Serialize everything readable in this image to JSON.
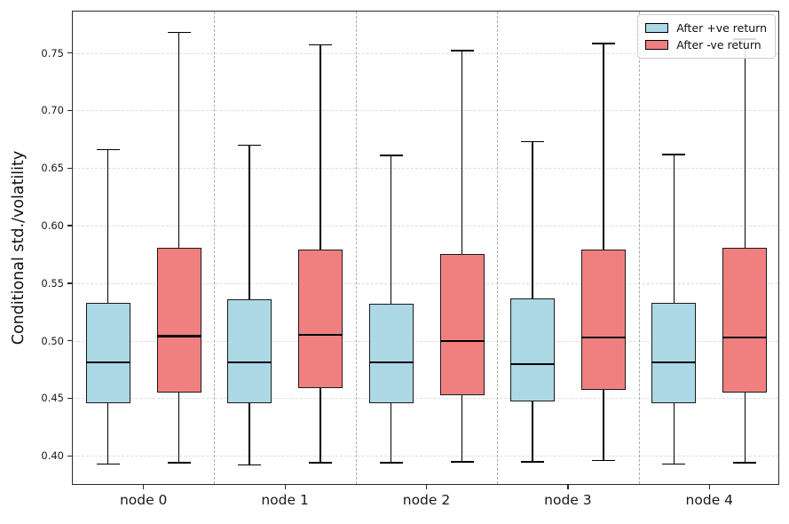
{
  "figure": {
    "background": "#ffffff",
    "plot_border_color": "#2a2a2a",
    "gridline_color": "#dcdcdc",
    "separator_color": "#ababab"
  },
  "legend": {
    "position": "upper right",
    "items": [
      {
        "label": "After +ve return",
        "color": "#ADD8E6"
      },
      {
        "label": "After -ve return",
        "color": "#F08080"
      }
    ]
  },
  "chart_data": {
    "type": "boxplot",
    "title": "",
    "xlabel": "",
    "ylabel": "Conditional std./volatility",
    "categories": [
      "node 0",
      "node 1",
      "node 2",
      "node 3",
      "node 4"
    ],
    "ylim": [
      0.374,
      0.786
    ],
    "yticks": [
      0.4,
      0.45,
      0.5,
      0.55,
      0.6,
      0.65,
      0.7,
      0.75
    ],
    "grid": "horizontal-dashed",
    "group_separators_frac": [
      0.2,
      0.4,
      0.6,
      0.8
    ],
    "legend_position": "upper right",
    "series": [
      {
        "name": "After +ve return",
        "color": "#ADD8E6",
        "boxes": [
          {
            "whislo": 0.393,
            "q1": 0.446,
            "med": 0.481,
            "q3": 0.533,
            "whishi": 0.666
          },
          {
            "whislo": 0.392,
            "q1": 0.446,
            "med": 0.481,
            "q3": 0.536,
            "whishi": 0.67
          },
          {
            "whislo": 0.394,
            "q1": 0.446,
            "med": 0.481,
            "q3": 0.532,
            "whishi": 0.661
          },
          {
            "whislo": 0.395,
            "q1": 0.447,
            "med": 0.48,
            "q3": 0.537,
            "whishi": 0.673
          },
          {
            "whislo": 0.393,
            "q1": 0.446,
            "med": 0.481,
            "q3": 0.533,
            "whishi": 0.662
          }
        ]
      },
      {
        "name": "After -ve return",
        "color": "#F08080",
        "boxes": [
          {
            "whislo": 0.394,
            "q1": 0.455,
            "med": 0.504,
            "q3": 0.581,
            "whishi": 0.768
          },
          {
            "whislo": 0.394,
            "q1": 0.459,
            "med": 0.505,
            "q3": 0.579,
            "whishi": 0.757
          },
          {
            "whislo": 0.395,
            "q1": 0.453,
            "med": 0.5,
            "q3": 0.575,
            "whishi": 0.752
          },
          {
            "whislo": 0.396,
            "q1": 0.457,
            "med": 0.503,
            "q3": 0.579,
            "whishi": 0.758
          },
          {
            "whislo": 0.394,
            "q1": 0.455,
            "med": 0.503,
            "q3": 0.581,
            "whishi": 0.762
          }
        ]
      }
    ]
  }
}
